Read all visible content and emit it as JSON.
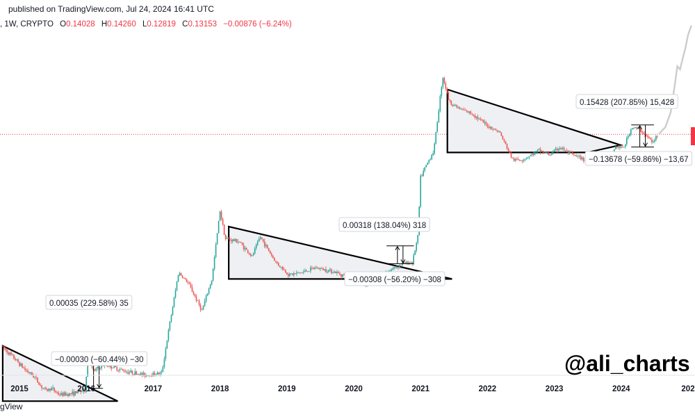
{
  "header": {
    "published": "published on TradingView.com, Jul 24, 2024 16:41 UTC",
    "symbol": ", 1W, CRYPTO",
    "ohlc": [
      {
        "label": "O",
        "value": "0.14028"
      },
      {
        "label": "H",
        "value": "0.14260"
      },
      {
        "label": "L",
        "value": "0.12819"
      },
      {
        "label": "C",
        "value": "0.13153"
      }
    ],
    "change": "−0.00876 (−6.24%)"
  },
  "watermark": "@ali_charts",
  "footer_brand": "gView",
  "colors": {
    "up": "#26a69a",
    "down": "#ef5350",
    "pattern_fill": "#eef0f3",
    "pattern_line": "#000000",
    "price_line": "#f23645",
    "projection": "#cccccc"
  },
  "chart_data": {
    "type": "candlestick",
    "title": "",
    "xlabel": "",
    "ylabel": "",
    "y_scale": "log",
    "x_ticks": [
      "2015",
      "2016",
      "2017",
      "2018",
      "2019",
      "2020",
      "2021",
      "2022",
      "2023",
      "2024",
      "202"
    ],
    "x_range": [
      2014.75,
      2025.05
    ],
    "current_close": 0.13153,
    "callouts": [
      {
        "text": "0.00035 (229.58%) 35"
      },
      {
        "text": "−0.00030 (−60.44%) −30"
      },
      {
        "text": "0.00318 (138.04%) 318"
      },
      {
        "text": "−0.00308 (−56.20%) −308"
      },
      {
        "text": "0.15428 (207.85%) 15,428"
      },
      {
        "text": "−0.13678 (−59.86%) −13,67"
      }
    ]
  }
}
